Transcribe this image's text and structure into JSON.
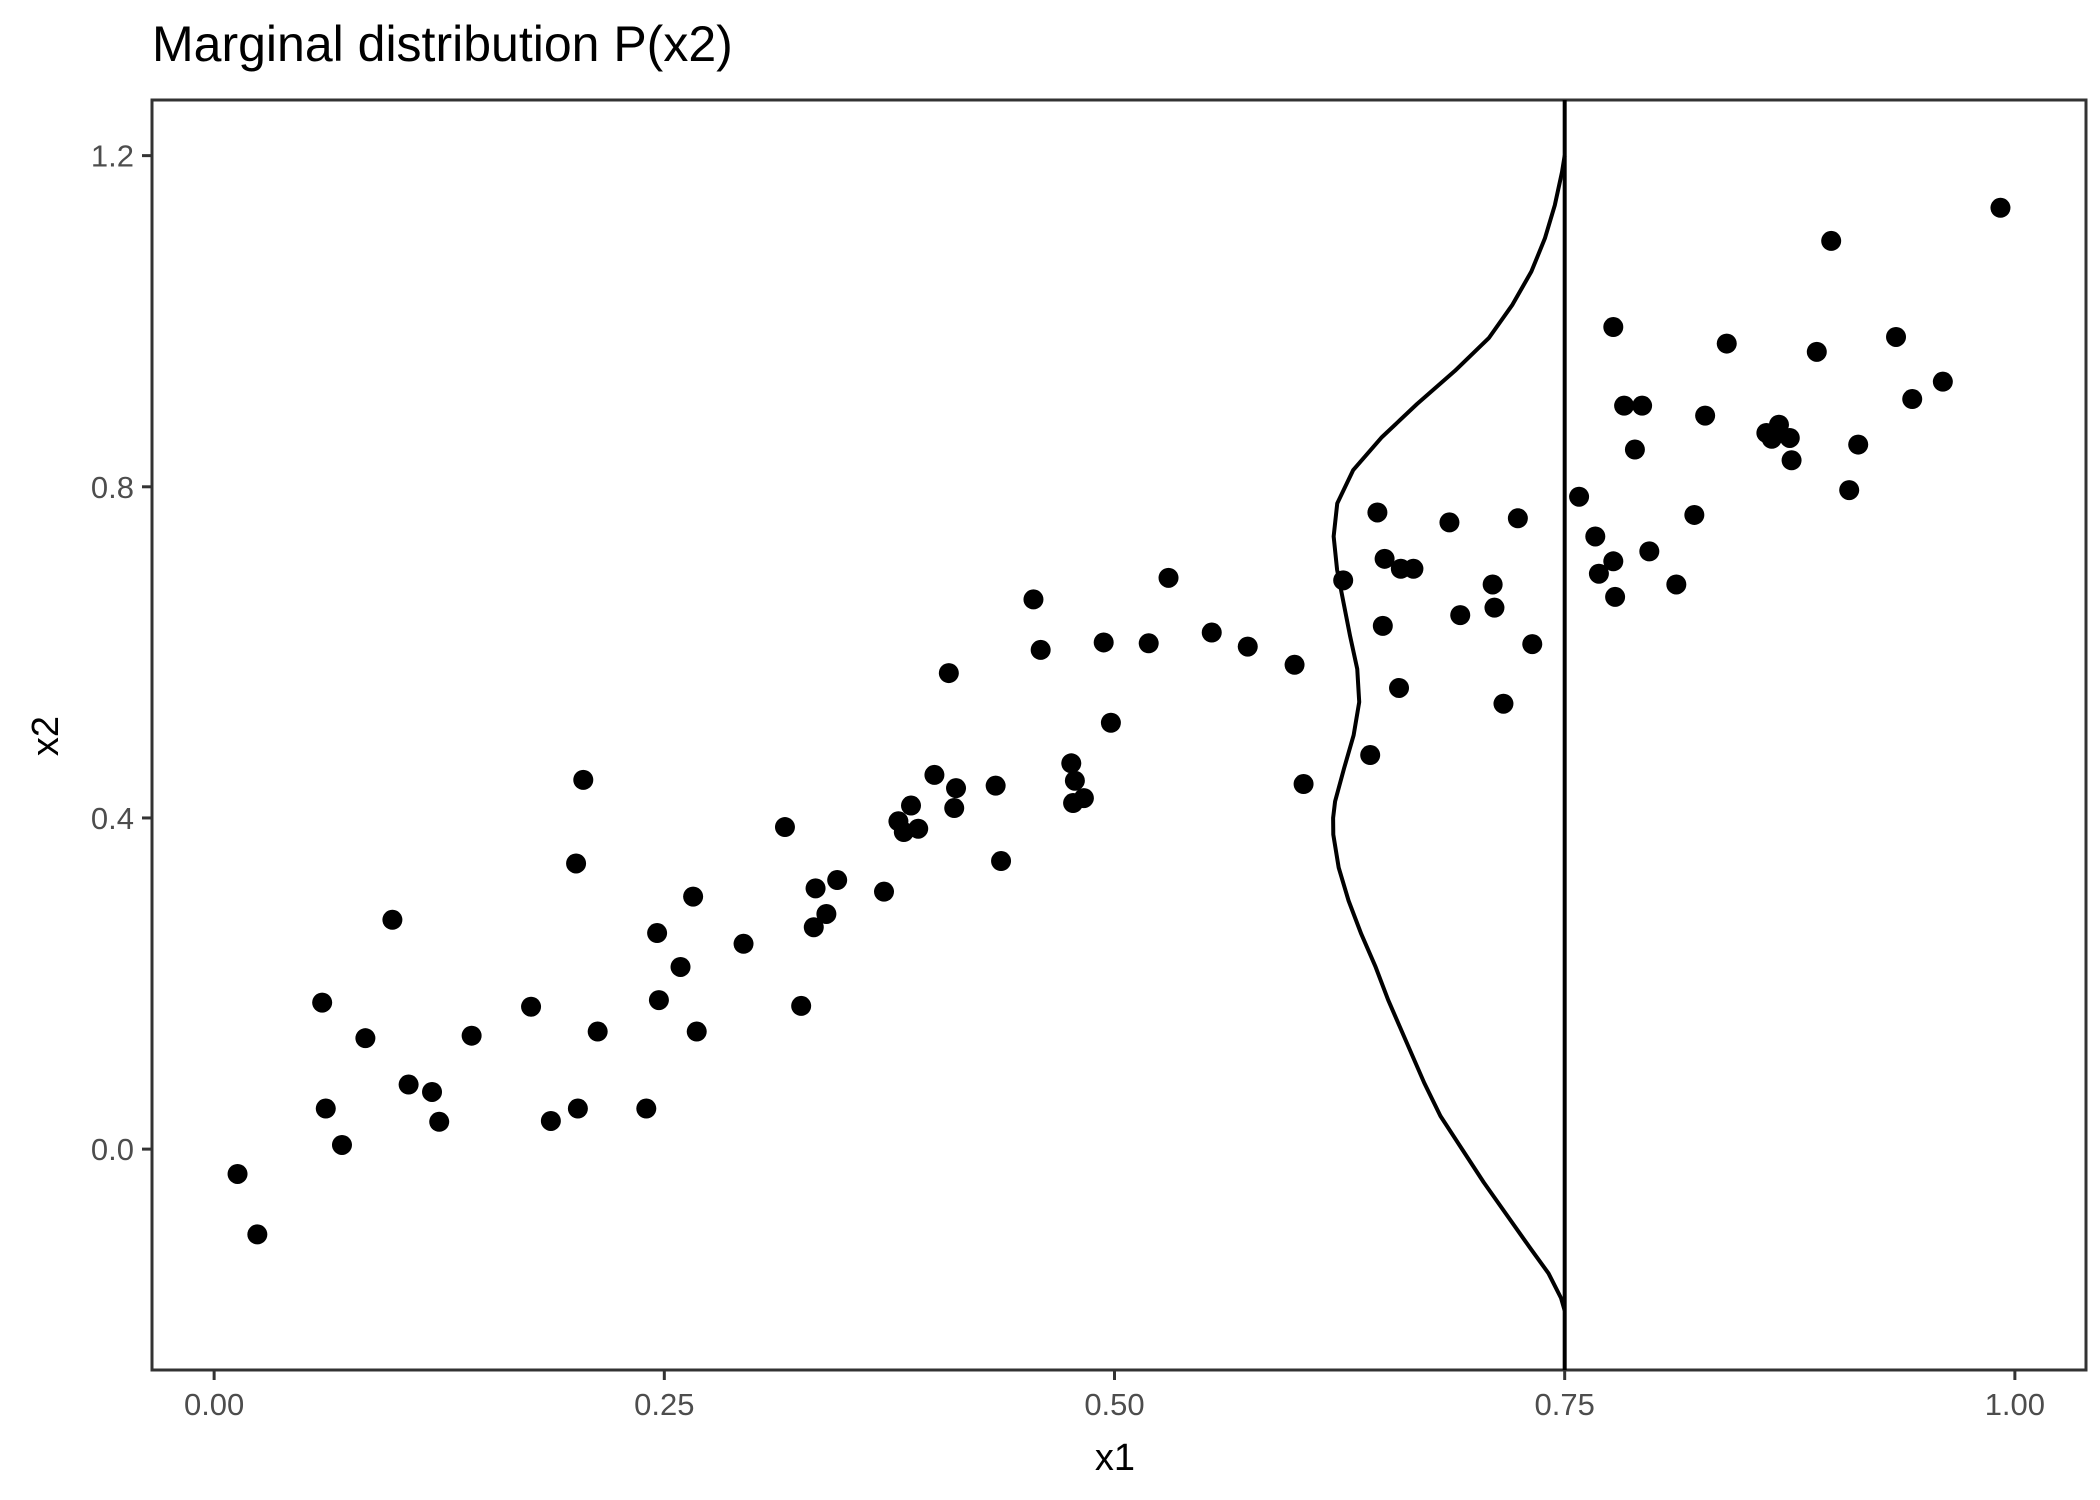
{
  "chart_data": {
    "type": "scatter",
    "title": "Marginal distribution P(x2)",
    "xlabel": "x1",
    "ylabel": "x2",
    "xlim": [
      -0.0345,
      1.0395
    ],
    "ylim": [
      -0.2668,
      1.2672
    ],
    "x_ticks": [
      {
        "value": 0.0,
        "label": "0.00"
      },
      {
        "value": 0.25,
        "label": "0.25"
      },
      {
        "value": 0.5,
        "label": "0.50"
      },
      {
        "value": 0.75,
        "label": "0.75"
      },
      {
        "value": 1.0,
        "label": "1.00"
      }
    ],
    "y_ticks": [
      {
        "value": 0.0,
        "label": "0.0"
      },
      {
        "value": 0.4,
        "label": "0.4"
      },
      {
        "value": 0.8,
        "label": "0.8"
      },
      {
        "value": 1.2,
        "label": "1.2"
      }
    ],
    "grid": false,
    "legend": "none",
    "vertical_line": {
      "x": 0.75
    },
    "density_curve": {
      "baseline_x": 0.75,
      "points": [
        [
          -0.195,
          0.75
        ],
        [
          -0.18,
          0.748
        ],
        [
          -0.15,
          0.741
        ],
        [
          -0.12,
          0.731
        ],
        [
          -0.08,
          0.718
        ],
        [
          -0.04,
          0.705
        ],
        [
          0.0,
          0.693
        ],
        [
          0.04,
          0.681
        ],
        [
          0.08,
          0.672
        ],
        [
          0.13,
          0.662
        ],
        [
          0.18,
          0.652
        ],
        [
          0.22,
          0.645
        ],
        [
          0.26,
          0.637
        ],
        [
          0.3,
          0.63
        ],
        [
          0.34,
          0.6245
        ],
        [
          0.38,
          0.6215
        ],
        [
          0.4,
          0.6214
        ],
        [
          0.42,
          0.6225
        ],
        [
          0.46,
          0.6275
        ],
        [
          0.5,
          0.6328
        ],
        [
          0.54,
          0.6359
        ],
        [
          0.58,
          0.6348
        ],
        [
          0.62,
          0.6308
        ],
        [
          0.66,
          0.6272
        ],
        [
          0.7,
          0.6236
        ],
        [
          0.74,
          0.6217
        ],
        [
          0.78,
          0.6237
        ],
        [
          0.82,
          0.6325
        ],
        [
          0.86,
          0.6485
        ],
        [
          0.9,
          0.668
        ],
        [
          0.94,
          0.689
        ],
        [
          0.98,
          0.708
        ],
        [
          1.02,
          0.721
        ],
        [
          1.06,
          0.7315
        ],
        [
          1.1,
          0.739
        ],
        [
          1.14,
          0.7445
        ],
        [
          1.18,
          0.7485
        ],
        [
          1.2,
          0.75
        ]
      ]
    },
    "points": [
      [
        0.013,
        -0.03
      ],
      [
        0.024,
        -0.103
      ],
      [
        0.06,
        0.177
      ],
      [
        0.062,
        0.049
      ],
      [
        0.071,
        0.005
      ],
      [
        0.084,
        0.134
      ],
      [
        0.099,
        0.277
      ],
      [
        0.108,
        0.078
      ],
      [
        0.121,
        0.069
      ],
      [
        0.125,
        0.033
      ],
      [
        0.143,
        0.137
      ],
      [
        0.176,
        0.172
      ],
      [
        0.187,
        0.034
      ],
      [
        0.202,
        0.049
      ],
      [
        0.201,
        0.345
      ],
      [
        0.205,
        0.446
      ],
      [
        0.213,
        0.142
      ],
      [
        0.24,
        0.049
      ],
      [
        0.246,
        0.261
      ],
      [
        0.247,
        0.18
      ],
      [
        0.259,
        0.22
      ],
      [
        0.266,
        0.305
      ],
      [
        0.268,
        0.142
      ],
      [
        0.294,
        0.248
      ],
      [
        0.317,
        0.389
      ],
      [
        0.326,
        0.173
      ],
      [
        0.333,
        0.268
      ],
      [
        0.334,
        0.315
      ],
      [
        0.34,
        0.284
      ],
      [
        0.346,
        0.325
      ],
      [
        0.372,
        0.311
      ],
      [
        0.38,
        0.396
      ],
      [
        0.383,
        0.383
      ],
      [
        0.387,
        0.415
      ],
      [
        0.391,
        0.387
      ],
      [
        0.4,
        0.452
      ],
      [
        0.408,
        0.575
      ],
      [
        0.411,
        0.412
      ],
      [
        0.412,
        0.436
      ],
      [
        0.434,
        0.439
      ],
      [
        0.437,
        0.348
      ],
      [
        0.455,
        0.664
      ],
      [
        0.459,
        0.603
      ],
      [
        0.476,
        0.466
      ],
      [
        0.477,
        0.418
      ],
      [
        0.478,
        0.445
      ],
      [
        0.483,
        0.424
      ],
      [
        0.494,
        0.612
      ],
      [
        0.498,
        0.515
      ],
      [
        0.519,
        0.611
      ],
      [
        0.53,
        0.69
      ],
      [
        0.554,
        0.624
      ],
      [
        0.574,
        0.607
      ],
      [
        0.6,
        0.585
      ],
      [
        0.605,
        0.441
      ],
      [
        0.627,
        0.687
      ],
      [
        0.642,
        0.476
      ],
      [
        0.646,
        0.769
      ],
      [
        0.649,
        0.632
      ],
      [
        0.65,
        0.713
      ],
      [
        0.658,
        0.557
      ],
      [
        0.659,
        0.701
      ],
      [
        0.666,
        0.701
      ],
      [
        0.686,
        0.757
      ],
      [
        0.692,
        0.645
      ],
      [
        0.71,
        0.682
      ],
      [
        0.711,
        0.654
      ],
      [
        0.716,
        0.538
      ],
      [
        0.724,
        0.762
      ],
      [
        0.732,
        0.61
      ],
      [
        0.758,
        0.788
      ],
      [
        0.767,
        0.74
      ],
      [
        0.769,
        0.695
      ],
      [
        0.777,
        0.71
      ],
      [
        0.777,
        0.993
      ],
      [
        0.778,
        0.667
      ],
      [
        0.783,
        0.898
      ],
      [
        0.789,
        0.845
      ],
      [
        0.793,
        0.898
      ],
      [
        0.797,
        0.722
      ],
      [
        0.812,
        0.682
      ],
      [
        0.822,
        0.766
      ],
      [
        0.828,
        0.886
      ],
      [
        0.84,
        0.973
      ],
      [
        0.862,
        0.865
      ],
      [
        0.865,
        0.858
      ],
      [
        0.869,
        0.875
      ],
      [
        0.875,
        0.859
      ],
      [
        0.876,
        0.832
      ],
      [
        0.89,
        0.963
      ],
      [
        0.898,
        1.097
      ],
      [
        0.908,
        0.796
      ],
      [
        0.913,
        0.851
      ],
      [
        0.934,
        0.981
      ],
      [
        0.943,
        0.906
      ],
      [
        0.96,
        0.927
      ],
      [
        0.992,
        1.137
      ]
    ]
  }
}
